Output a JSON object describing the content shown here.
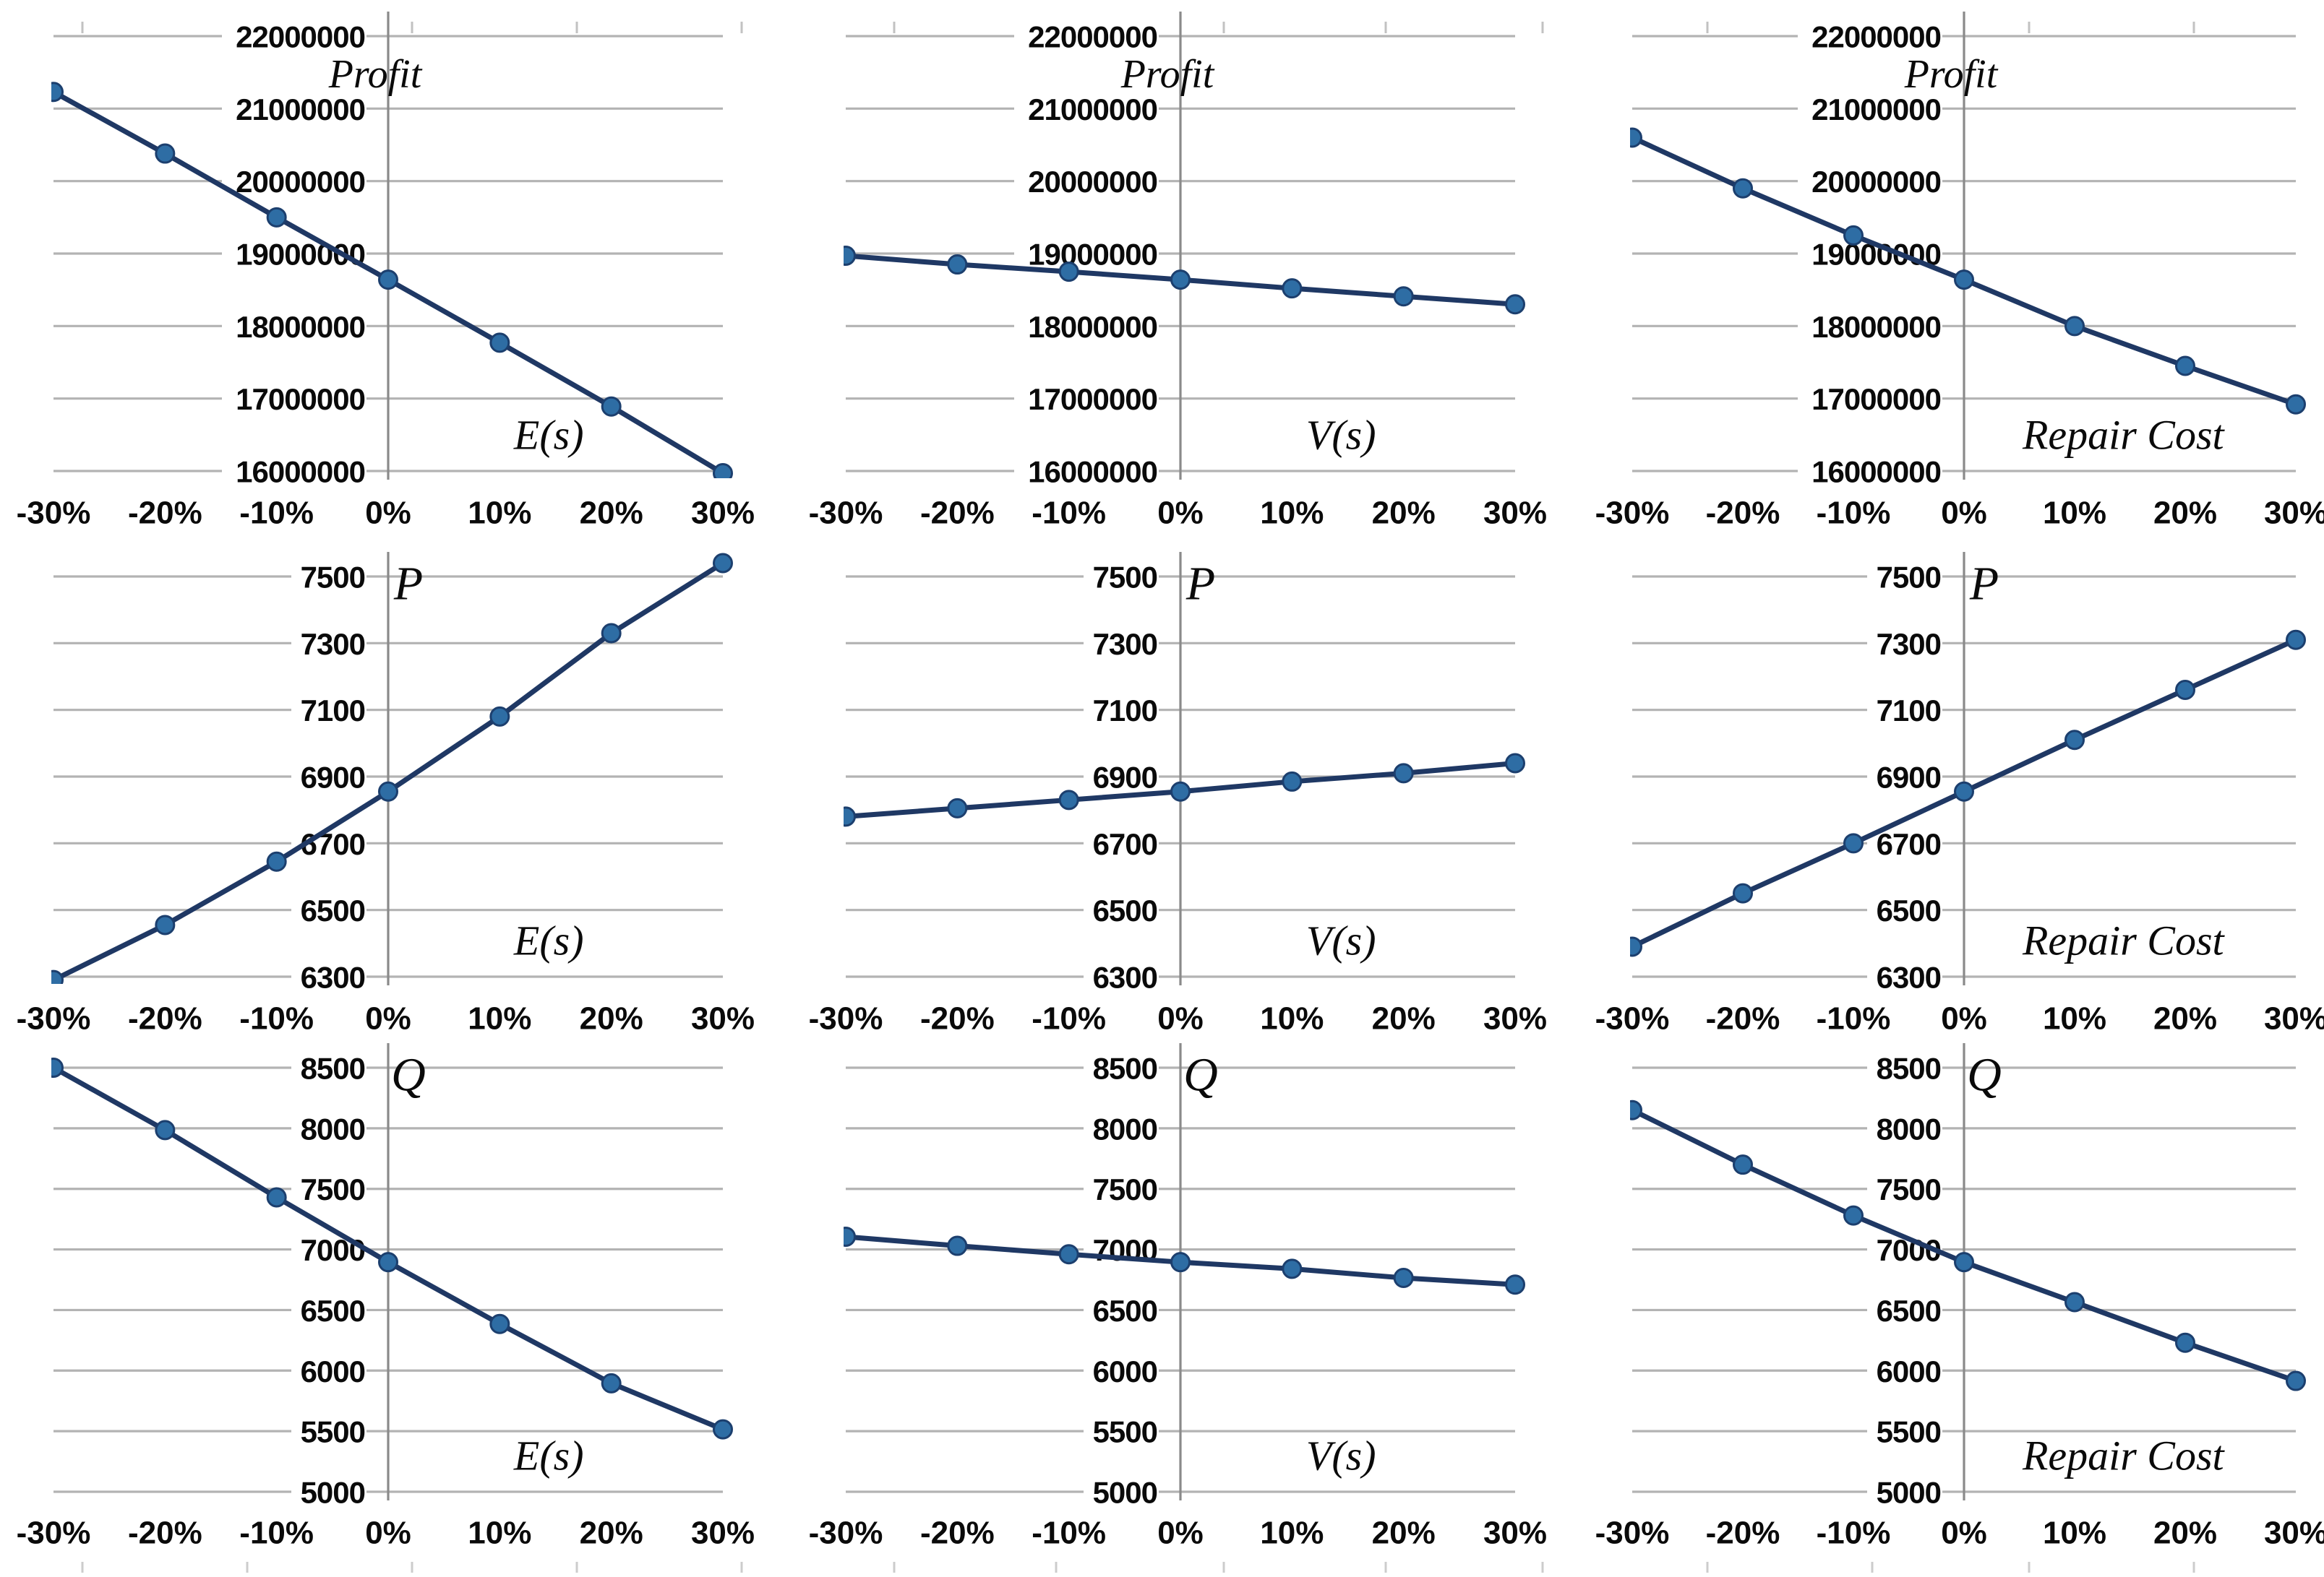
{
  "figure": {
    "description": "3x3 grid of sensitivity analysis line charts",
    "row_outputs": [
      "Profit",
      "P",
      "Q"
    ],
    "column_parameters": [
      "E(s)",
      "V(s)",
      "Repair Cost"
    ]
  },
  "style": {
    "line_color": "#1f3864",
    "marker_fill": "#2e6da4",
    "marker_stroke": "#1c3f6e",
    "gridline_color": "#b3b3b3",
    "axis_color": "#8a8a8a",
    "label_color": "#0a0a0a",
    "background": "#ffffff"
  },
  "chart_data": [
    {
      "id": "profit-es",
      "type": "line",
      "y_title": "Profit",
      "series_label": "E(s)",
      "categories": [
        "-30%",
        "-20%",
        "-10%",
        "0%",
        "10%",
        "20%",
        "30%"
      ],
      "values": [
        21230000,
        20380000,
        19500000,
        18640000,
        17770000,
        16890000,
        15970000
      ],
      "yticks": [
        16000000,
        17000000,
        18000000,
        19000000,
        20000000,
        21000000,
        22000000
      ],
      "ylim": [
        16000000,
        22000000
      ],
      "grid": true,
      "legend": "none",
      "axis_cross_category": "0%"
    },
    {
      "id": "profit-vs",
      "type": "line",
      "y_title": "Profit",
      "series_label": "V(s)",
      "categories": [
        "-30%",
        "-20%",
        "-10%",
        "0%",
        "10%",
        "20%",
        "30%"
      ],
      "values": [
        18970000,
        18850000,
        18750000,
        18640000,
        18520000,
        18410000,
        18300000
      ],
      "yticks": [
        16000000,
        17000000,
        18000000,
        19000000,
        20000000,
        21000000,
        22000000
      ],
      "ylim": [
        16000000,
        22000000
      ],
      "grid": true,
      "legend": "none",
      "axis_cross_category": "0%"
    },
    {
      "id": "profit-repaircost",
      "type": "line",
      "y_title": "Profit",
      "series_label": "Repair Cost",
      "categories": [
        "-30%",
        "-20%",
        "-10%",
        "0%",
        "10%",
        "20%",
        "30%"
      ],
      "values": [
        20600000,
        19900000,
        19250000,
        18640000,
        18000000,
        17450000,
        16920000
      ],
      "yticks": [
        16000000,
        17000000,
        18000000,
        19000000,
        20000000,
        21000000,
        22000000
      ],
      "ylim": [
        16000000,
        22000000
      ],
      "grid": true,
      "legend": "none",
      "axis_cross_category": "0%"
    },
    {
      "id": "p-es",
      "type": "line",
      "y_title": "P",
      "series_label": "E(s)",
      "categories": [
        "-30%",
        "-20%",
        "-10%",
        "0%",
        "10%",
        "20%",
        "30%"
      ],
      "values": [
        6290,
        6455,
        6645,
        6855,
        7080,
        7330,
        7540
      ],
      "yticks": [
        6300,
        6500,
        6700,
        6900,
        7100,
        7300,
        7500
      ],
      "ylim": [
        6300,
        7500
      ],
      "grid": true,
      "legend": "none",
      "axis_cross_category": "0%"
    },
    {
      "id": "p-vs",
      "type": "line",
      "y_title": "P",
      "series_label": "V(s)",
      "categories": [
        "-30%",
        "-20%",
        "-10%",
        "0%",
        "10%",
        "20%",
        "30%"
      ],
      "values": [
        6780,
        6805,
        6830,
        6855,
        6885,
        6910,
        6940
      ],
      "yticks": [
        6300,
        6500,
        6700,
        6900,
        7100,
        7300,
        7500
      ],
      "ylim": [
        6300,
        7500
      ],
      "grid": true,
      "legend": "none",
      "axis_cross_category": "0%"
    },
    {
      "id": "p-repaircost",
      "type": "line",
      "y_title": "P",
      "series_label": "Repair Cost",
      "categories": [
        "-30%",
        "-20%",
        "-10%",
        "0%",
        "10%",
        "20%",
        "30%"
      ],
      "values": [
        6390,
        6550,
        6700,
        6855,
        7010,
        7160,
        7310
      ],
      "yticks": [
        6300,
        6500,
        6700,
        6900,
        7100,
        7300,
        7500
      ],
      "ylim": [
        6300,
        7500
      ],
      "grid": true,
      "legend": "none",
      "axis_cross_category": "0%"
    },
    {
      "id": "q-es",
      "type": "line",
      "y_title": "Q",
      "series_label": "E(s)",
      "categories": [
        "-30%",
        "-20%",
        "-10%",
        "0%",
        "10%",
        "20%",
        "30%"
      ],
      "values": [
        8500,
        7985,
        7430,
        6895,
        6385,
        5895,
        5515
      ],
      "yticks": [
        5000,
        5500,
        6000,
        6500,
        7000,
        7500,
        8000,
        8500
      ],
      "ylim": [
        5000,
        8500
      ],
      "grid": true,
      "legend": "none",
      "axis_cross_category": "0%"
    },
    {
      "id": "q-vs",
      "type": "line",
      "y_title": "Q",
      "series_label": "V(s)",
      "categories": [
        "-30%",
        "-20%",
        "-10%",
        "0%",
        "10%",
        "20%",
        "30%"
      ],
      "values": [
        7105,
        7030,
        6960,
        6895,
        6840,
        6765,
        6710
      ],
      "yticks": [
        5000,
        5500,
        6000,
        6500,
        7000,
        7500,
        8000,
        8500
      ],
      "ylim": [
        5000,
        8500
      ],
      "grid": true,
      "legend": "none",
      "axis_cross_category": "0%"
    },
    {
      "id": "q-repaircost",
      "type": "line",
      "y_title": "Q",
      "series_label": "Repair Cost",
      "categories": [
        "-30%",
        "-20%",
        "-10%",
        "0%",
        "10%",
        "20%",
        "30%"
      ],
      "values": [
        8150,
        7700,
        7280,
        6895,
        6565,
        6230,
        5915
      ],
      "yticks": [
        5000,
        5500,
        6000,
        6500,
        7000,
        7500,
        8000,
        8500
      ],
      "ylim": [
        5000,
        8500
      ],
      "grid": true,
      "legend": "none",
      "axis_cross_category": "0%"
    }
  ]
}
